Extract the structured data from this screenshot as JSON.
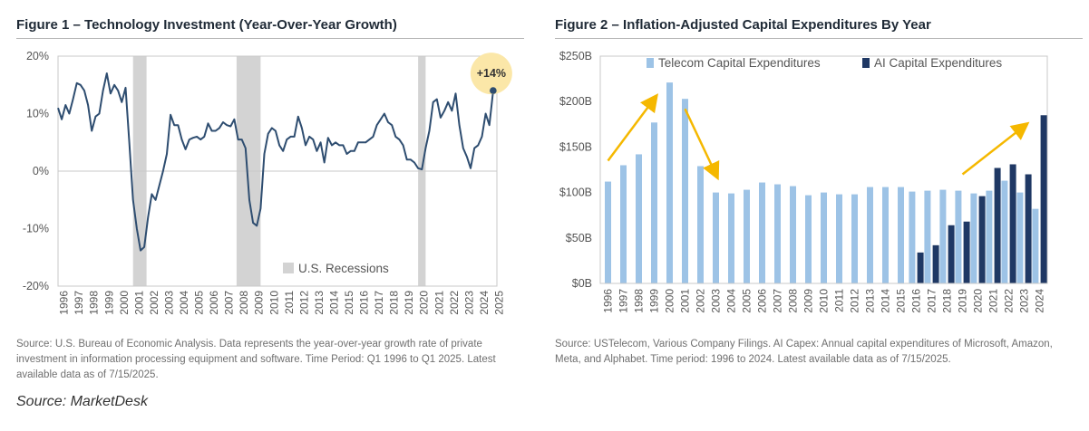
{
  "figure1": {
    "title": "Figure 1 – Technology Investment (Year-Over-Year Growth)",
    "source_note": "Source: U.S. Bureau of Economic Analysis. Data represents the year-over-year growth rate of private investment in information processing equipment and software. Time Period: Q1 1996 to Q1 2025. Latest available data as of 7/15/2025.",
    "chart_data": {
      "type": "line",
      "ylim": [
        -20,
        20
      ],
      "xlim": [
        1996,
        2025.25
      ],
      "yticks": [
        20,
        10,
        0,
        -10,
        -20
      ],
      "ytick_labels": [
        "20%",
        "10%",
        "0%",
        "-10%",
        "-20%"
      ],
      "x_tick_labels": [
        "1996",
        "1997",
        "1998",
        "1999",
        "2000",
        "2001",
        "2002",
        "2003",
        "2004",
        "2005",
        "2006",
        "2007",
        "2008",
        "2009",
        "2010",
        "2011",
        "2012",
        "2013",
        "2014",
        "2015",
        "2016",
        "2017",
        "2018",
        "2019",
        "2020",
        "2021",
        "2022",
        "2023",
        "2024",
        "2025"
      ],
      "series_color": "#2e4d70",
      "recession_color": "#d3d3d3",
      "recession_label": "U.S. Recessions",
      "recessions": [
        [
          2001.0,
          2001.9
        ],
        [
          2007.9,
          2009.5
        ],
        [
          2020.0,
          2020.5
        ]
      ],
      "series": [
        {
          "x": [
            1996.0,
            1996.25,
            1996.5,
            1996.75,
            1997.0,
            1997.25,
            1997.5,
            1997.75,
            1998.0,
            1998.25,
            1998.5,
            1998.75,
            1999.0,
            1999.25,
            1999.5,
            1999.75,
            2000.0,
            2000.25,
            2000.5,
            2000.75,
            2001.0,
            2001.25,
            2001.5,
            2001.75,
            2002.0,
            2002.25,
            2002.5,
            2002.75,
            2003.0,
            2003.25,
            2003.5,
            2003.75,
            2004.0,
            2004.25,
            2004.5,
            2004.75,
            2005.0,
            2005.25,
            2005.5,
            2005.75,
            2006.0,
            2006.25,
            2006.5,
            2006.75,
            2007.0,
            2007.25,
            2007.5,
            2007.75,
            2008.0,
            2008.25,
            2008.5,
            2008.75,
            2009.0,
            2009.25,
            2009.5,
            2009.75,
            2010.0,
            2010.25,
            2010.5,
            2010.75,
            2011.0,
            2011.25,
            2011.5,
            2011.75,
            2012.0,
            2012.25,
            2012.5,
            2012.75,
            2013.0,
            2013.25,
            2013.5,
            2013.75,
            2014.0,
            2014.25,
            2014.5,
            2014.75,
            2015.0,
            2015.25,
            2015.5,
            2015.75,
            2016.0,
            2016.25,
            2016.5,
            2016.75,
            2017.0,
            2017.25,
            2017.5,
            2017.75,
            2018.0,
            2018.25,
            2018.5,
            2018.75,
            2019.0,
            2019.25,
            2019.5,
            2019.75,
            2020.0,
            2020.25,
            2020.5,
            2020.75,
            2021.0,
            2021.25,
            2021.5,
            2021.75,
            2022.0,
            2022.25,
            2022.5,
            2022.75,
            2023.0,
            2023.25,
            2023.5,
            2023.75,
            2024.0,
            2024.25,
            2024.5,
            2024.75,
            2025.0
          ],
          "y": [
            11,
            9,
            11.5,
            10,
            12.5,
            15.3,
            15,
            14,
            11.5,
            7,
            9.5,
            10,
            14,
            17,
            13.5,
            15,
            14,
            12,
            14.5,
            5,
            -5,
            -10,
            -13.8,
            -13.2,
            -8,
            -4,
            -5,
            -2.5,
            0,
            3,
            9.8,
            8,
            8,
            5.5,
            3.8,
            5.5,
            5.8,
            6,
            5.5,
            6,
            8.3,
            7,
            7,
            7.5,
            8.5,
            8,
            7.8,
            9,
            5.5,
            5.5,
            4,
            -5,
            -9,
            -9.5,
            -6.5,
            3,
            6.5,
            7.5,
            7,
            4.5,
            3.5,
            5.5,
            6,
            6,
            9.5,
            7.5,
            4.5,
            6,
            5.5,
            3.5,
            5,
            1.5,
            5.8,
            4.5,
            5,
            4.5,
            4.5,
            3,
            3.5,
            3.5,
            5,
            5,
            5,
            5.5,
            6,
            8,
            9,
            10,
            8.5,
            8,
            6,
            5.5,
            4.5,
            2,
            2,
            1.5,
            0.5,
            0.3,
            4,
            7,
            12,
            12.5,
            9.3,
            10.5,
            12,
            10.5,
            13.5,
            8,
            4,
            2.5,
            0.5,
            4,
            4.5,
            6,
            10,
            8,
            14
          ]
        }
      ],
      "annotation": {
        "label": "+14%",
        "x": 2025.0,
        "y": 14,
        "bubble_color": "#fbe7a8"
      }
    }
  },
  "figure2": {
    "title": "Figure 2 – Inflation-Adjusted Capital Expenditures By Year",
    "source_note": "Source: USTelecom, Various Company Filings. AI Capex: Annual capital expenditures of Microsoft, Amazon, Meta, and Alphabet. Time period: 1996 to 2024. Latest available data as of 7/15/2025.",
    "chart_data": {
      "type": "bar",
      "categories": [
        "1996",
        "1997",
        "1998",
        "1999",
        "2000",
        "2001",
        "2002",
        "2003",
        "2004",
        "2005",
        "2006",
        "2007",
        "2008",
        "2009",
        "2010",
        "2011",
        "2012",
        "2013",
        "2014",
        "2015",
        "2016",
        "2017",
        "2018",
        "2019",
        "2020",
        "2021",
        "2022",
        "2023",
        "2024"
      ],
      "ylim": [
        0,
        250
      ],
      "yticks": [
        250,
        200,
        150,
        100,
        50,
        0
      ],
      "ytick_labels": [
        "$250B",
        "$200B",
        "$150B",
        "$100B",
        "$50B",
        "$0B"
      ],
      "legend_position": "top",
      "series": [
        {
          "name": "Telecom Capital Expenditures",
          "color": "#9dc3e6",
          "values": [
            112,
            130,
            142,
            177,
            221,
            203,
            129,
            100,
            99,
            103,
            111,
            109,
            107,
            97,
            100,
            98,
            98,
            106,
            106,
            106,
            101,
            102,
            103,
            102,
            99,
            102,
            113,
            100,
            82
          ]
        },
        {
          "name": "AI Capital Expenditures",
          "color": "#1f3864",
          "values": [
            null,
            null,
            null,
            null,
            null,
            null,
            null,
            null,
            null,
            null,
            null,
            null,
            null,
            null,
            null,
            null,
            null,
            null,
            null,
            null,
            34,
            42,
            64,
            68,
            96,
            127,
            131,
            120,
            185
          ]
        }
      ],
      "trend_arrows_color": "#f5b800",
      "trend_arrows": [
        {
          "from": [
            "1996",
            135
          ],
          "to": [
            "1999",
            203
          ]
        },
        {
          "from": [
            "2001",
            192
          ],
          "to": [
            "2003",
            120
          ]
        },
        {
          "from": [
            "2019",
            120
          ],
          "to": [
            "2023",
            173
          ]
        }
      ]
    }
  },
  "footer": {
    "source": "Source: MarketDesk"
  }
}
